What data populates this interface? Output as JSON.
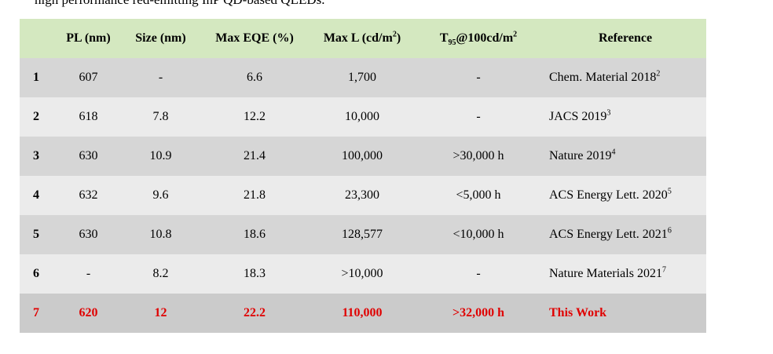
{
  "caption": "high performance red-emitting InP QD-based QLEDs.",
  "headers": {
    "index": "",
    "pl": "PL (nm)",
    "size": "Size (nm)",
    "eqe": "Max EQE (%)",
    "lum_base": "Max L (cd/m",
    "lum_sup": "2",
    "lum_end": ")",
    "t95_base": "T",
    "t95_sub": "95",
    "t95_end": "@100cd/m",
    "t95_sup": "2",
    "reference": "Reference"
  },
  "rows": [
    {
      "index": "1",
      "pl": "607",
      "size": "-",
      "eqe": "6.6",
      "lum": "1,700",
      "t95": "-",
      "ref": "Chem. Material 2018",
      "ref_sup": "2"
    },
    {
      "index": "2",
      "pl": "618",
      "size": "7.8",
      "eqe": "12.2",
      "lum": "10,000",
      "t95": "-",
      "ref": "JACS 2019",
      "ref_sup": "3"
    },
    {
      "index": "3",
      "pl": "630",
      "size": "10.9",
      "eqe": "21.4",
      "lum": "100,000",
      "t95": ">30,000 h",
      "ref": "Nature 2019",
      "ref_sup": "4"
    },
    {
      "index": "4",
      "pl": "632",
      "size": "9.6",
      "eqe": "21.8",
      "lum": "23,300",
      "t95": "<5,000 h",
      "ref": "ACS Energy Lett. 2020",
      "ref_sup": "5"
    },
    {
      "index": "5",
      "pl": "630",
      "size": "10.8",
      "eqe": "18.6",
      "lum": "128,577",
      "t95": "<10,000 h",
      "ref": "ACS Energy Lett. 2021",
      "ref_sup": "6"
    },
    {
      "index": "6",
      "pl": "-",
      "size": "8.2",
      "eqe": "18.3",
      "lum": ">10,000",
      "t95": "-",
      "ref": "Nature Materials 2021",
      "ref_sup": "7"
    },
    {
      "index": "7",
      "pl": "620",
      "size": "12",
      "eqe": "22.2",
      "lum": "110,000",
      "t95": ">32,000 h",
      "ref": "This Work",
      "ref_sup": ""
    }
  ],
  "colors": {
    "header_bg": "#d4e8c0",
    "row_dark": "#d6d6d6",
    "row_light": "#ebebeb",
    "highlight_text": "#e00000"
  }
}
